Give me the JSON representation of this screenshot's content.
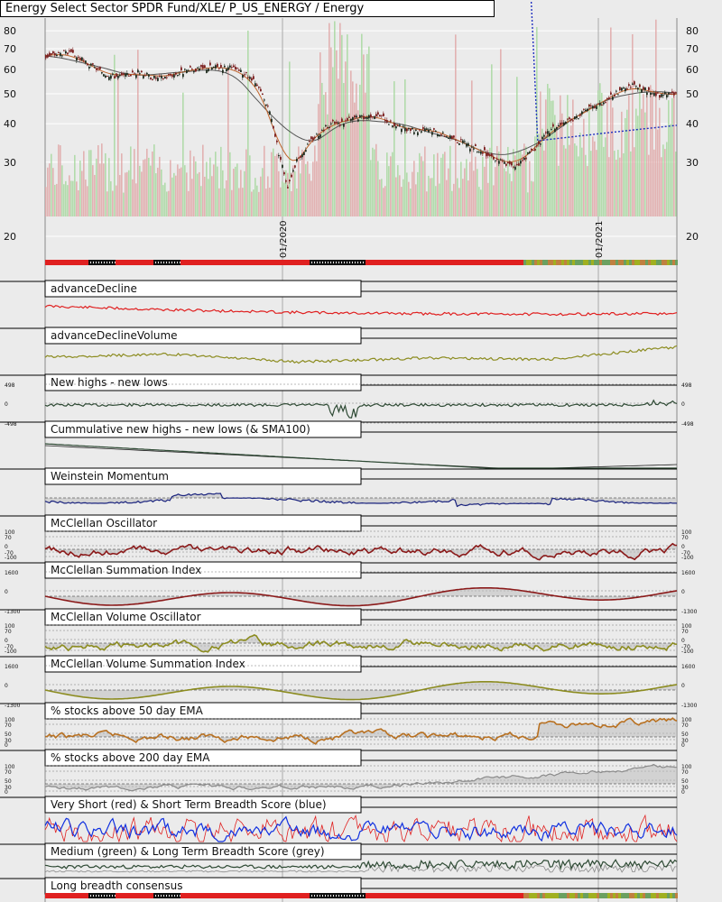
{
  "title": "Energy Select Sector SPDR Fund/XLE/ P_US_ENERGY / Energy",
  "colors": {
    "background": "#ebebeb",
    "grid": "#ffffff",
    "price_up": "#1e2b1e",
    "price_down": "#7a1e1e",
    "vol_up": "#a8d8a0",
    "vol_down": "#e0a8a8",
    "ma_fast": "#c0632a",
    "ma_slow": "#555555",
    "ma_dotted": "#2030c0",
    "red_line": "#e02020",
    "olive": "#8c8c20",
    "dark_green": "#2e4a34",
    "navy": "#1a237e",
    "maroon": "#8b1a1a",
    "orange_brown": "#b87020",
    "grey": "#8a8a8a",
    "blue": "#1030e0"
  },
  "chart_data": [
    {
      "type": "line",
      "panel": "price",
      "title": "Energy Select Sector SPDR Fund/XLE/ P_US_ENERGY / Energy",
      "y_ticks": [
        80,
        70,
        60,
        50,
        40,
        30,
        20
      ],
      "y_scale": "log",
      "ylim": [
        20,
        88
      ],
      "x_tick_labels": [
        "01/2020",
        "01/2021"
      ],
      "series": [
        {
          "values": [
            66,
            67,
            68,
            67,
            65,
            62,
            60,
            58,
            57,
            57,
            58,
            59,
            57,
            56,
            57,
            58,
            59,
            60,
            60,
            61,
            61,
            61,
            60,
            58,
            55,
            50,
            43,
            32,
            25,
            30,
            33,
            36,
            38,
            40,
            40,
            41,
            42,
            42,
            43,
            42,
            40,
            39,
            38,
            38,
            39,
            38,
            37,
            36,
            35,
            34,
            33,
            32,
            31,
            30,
            29,
            30,
            32,
            34,
            37,
            39,
            40,
            41,
            43,
            45,
            46,
            48,
            50,
            52,
            53,
            52,
            51,
            49,
            50,
            50
          ],
          "x_range": [
            "2019-01",
            "2021-07"
          ]
        }
      ]
    },
    {
      "type": "line",
      "panel": "breadth-indicators",
      "series": [
        {
          "name": "advanceDecline"
        },
        {
          "name": "advanceDeclineVolume"
        },
        {
          "name": "New highs - new lows",
          "y_ticks": [
            498,
            0,
            -498
          ]
        },
        {
          "name": "Cummulative new highs - new lows (& SMA100)"
        },
        {
          "name": "Weinstein Momentum"
        },
        {
          "name": "McClellan Oscillator",
          "y_ticks": [
            100,
            70,
            0,
            -70,
            -100
          ]
        },
        {
          "name": "McClellan Summation Index",
          "y_ticks": [
            1600,
            0,
            -1300
          ]
        },
        {
          "name": "McClellan Volume Oscillator",
          "y_ticks": [
            100,
            70,
            0,
            -70,
            -100
          ]
        },
        {
          "name": "McClellan Volume Summation Index",
          "y_ticks": [
            1600,
            0,
            -1300
          ]
        },
        {
          "name": "% stocks above 50 day EMA",
          "y_ticks": [
            100,
            70,
            50,
            30,
            0
          ]
        },
        {
          "name": "% stocks above 200 day EMA",
          "y_ticks": [
            100,
            70,
            50,
            30,
            0
          ]
        },
        {
          "name": "Very Short (red) & Short Term Breadth Score (blue)"
        },
        {
          "name": "Medium (green) & Long Term Breadth Score (grey)"
        },
        {
          "name": "Long breadth consensus"
        }
      ]
    }
  ],
  "panels": [
    {
      "label": "advanceDecline",
      "top": 311,
      "height": 52,
      "kind": "line",
      "color": "red_line",
      "seed": 11,
      "trend": [
        0.3,
        0.45,
        0.55,
        0.6,
        0.62,
        0.6
      ],
      "axis": []
    },
    {
      "label": "advanceDeclineVolume",
      "top": 363,
      "height": 52,
      "kind": "line",
      "color": "olive",
      "seed": 12,
      "trend": [
        0.45,
        0.35,
        0.65,
        0.5,
        0.55,
        0.05
      ],
      "axis": []
    },
    {
      "label": "New highs - new lows",
      "top": 415,
      "height": 52,
      "kind": "spiky",
      "color": "dark_green",
      "seed": 13,
      "axis": [
        "498",
        "0",
        "-498"
      ]
    },
    {
      "label": "Cummulative new highs - new lows (& SMA100)",
      "top": 467,
      "height": 52,
      "kind": "decline",
      "color": "dark_green",
      "seed": 14,
      "axis": []
    },
    {
      "label": "Weinstein Momentum",
      "top": 519,
      "height": 52,
      "kind": "fill",
      "color": "navy",
      "seed": 15,
      "axis": []
    },
    {
      "label": "McClellan Oscillator",
      "top": 571,
      "height": 52,
      "kind": "osc",
      "color": "maroon",
      "seed": 16,
      "axis": [
        "100",
        "70",
        "0",
        "-70",
        "-100"
      ]
    },
    {
      "label": "McClellan Summation Index",
      "top": 623,
      "height": 52,
      "kind": "wave",
      "color": "maroon",
      "seed": 17,
      "axis": [
        "1600",
        "0",
        "-1300"
      ]
    },
    {
      "label": "McClellan Volume Oscillator",
      "top": 675,
      "height": 52,
      "kind": "osc",
      "color": "olive",
      "seed": 18,
      "axis": [
        "100",
        "70",
        "0",
        "-70",
        "-100"
      ]
    },
    {
      "label": "McClellan Volume Summation Index",
      "top": 727,
      "height": 52,
      "kind": "wave",
      "color": "olive",
      "seed": 19,
      "axis": [
        "1600",
        "0",
        "-1300"
      ]
    },
    {
      "label": "% stocks above 50 day EMA",
      "top": 779,
      "height": 52,
      "kind": "pct",
      "color": "orange_brown",
      "seed": 20,
      "axis": [
        "100",
        "70",
        "50",
        "30",
        "0"
      ]
    },
    {
      "label": "% stocks above 200 day EMA",
      "top": 831,
      "height": 52,
      "kind": "pct2",
      "color": "grey",
      "seed": 21,
      "axis": [
        "100",
        "70",
        "50",
        "30",
        "0"
      ]
    },
    {
      "label": "Very Short (red) & Short Term Breadth Score (blue)",
      "top": 883,
      "height": 52,
      "kind": "score",
      "color": "blue",
      "seed": 22,
      "axis": []
    },
    {
      "label": "Medium (green) & Long Term Breadth Score (grey)",
      "top": 935,
      "height": 38,
      "kind": "steps",
      "color": "dark_green",
      "seed": 23,
      "axis": []
    },
    {
      "label": "Long breadth consensus",
      "top": 973,
      "height": 27,
      "kind": "consensus",
      "color": "red_line",
      "seed": 24,
      "axis": []
    }
  ]
}
